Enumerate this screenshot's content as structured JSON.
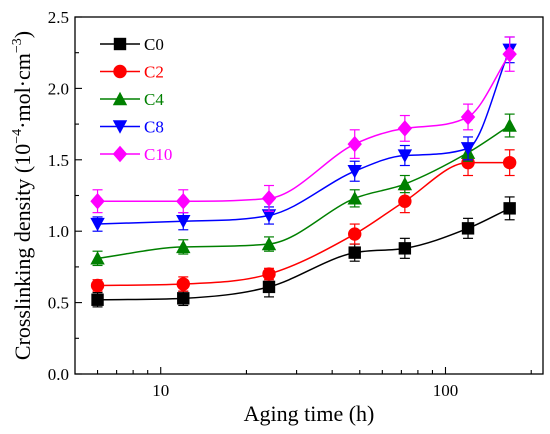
{
  "chart_data": {
    "type": "line",
    "xlabel": "Aging time (h)",
    "ylabel_main": "Crosslinking density (10",
    "ylabel_exp": "−4",
    "ylabel_unit_mid": "·mol·cm",
    "ylabel_unit_exp": "−3",
    "ylabel_close": ")",
    "xscale": "log",
    "xlim": [
      5,
      220
    ],
    "ylim": [
      0.0,
      2.5
    ],
    "xticks": [
      10,
      100
    ],
    "xtick_labels": [
      "10",
      "100"
    ],
    "yticks": [
      0.0,
      0.5,
      1.0,
      1.5,
      2.0,
      2.5
    ],
    "ytick_labels": [
      "0.0",
      "0.5",
      "1.0",
      "1.5",
      "2.0",
      "2.5"
    ],
    "legend_position": "top-left",
    "x": [
      6,
      12,
      24,
      48,
      72,
      120,
      168
    ],
    "series": [
      {
        "name": "C0",
        "color": "#000000",
        "marker": "square",
        "values": [
          0.52,
          0.53,
          0.61,
          0.85,
          0.88,
          1.02,
          1.16
        ],
        "errors": [
          0.05,
          0.05,
          0.07,
          0.06,
          0.07,
          0.07,
          0.08
        ]
      },
      {
        "name": "C2",
        "color": "#ff0000",
        "marker": "circle",
        "values": [
          0.62,
          0.63,
          0.7,
          0.98,
          1.21,
          1.48,
          1.48
        ],
        "errors": [
          0.04,
          0.05,
          0.04,
          0.07,
          0.08,
          0.09,
          0.09
        ]
      },
      {
        "name": "C4",
        "color": "#008000",
        "marker": "triangle-up",
        "values": [
          0.81,
          0.89,
          0.91,
          1.23,
          1.33,
          1.55,
          1.74
        ],
        "errors": [
          0.05,
          0.05,
          0.05,
          0.06,
          0.06,
          0.06,
          0.08
        ]
      },
      {
        "name": "C8",
        "color": "#0000ff",
        "marker": "triangle-down",
        "values": [
          1.05,
          1.07,
          1.11,
          1.42,
          1.53,
          1.58,
          2.27
        ],
        "errors": [
          0.05,
          0.06,
          0.06,
          0.07,
          0.07,
          0.08,
          0.09
        ]
      },
      {
        "name": "C10",
        "color": "#ff00ff",
        "marker": "diamond",
        "values": [
          1.21,
          1.21,
          1.23,
          1.61,
          1.72,
          1.8,
          2.24
        ],
        "errors": [
          0.08,
          0.08,
          0.09,
          0.1,
          0.09,
          0.09,
          0.12
        ]
      }
    ]
  }
}
